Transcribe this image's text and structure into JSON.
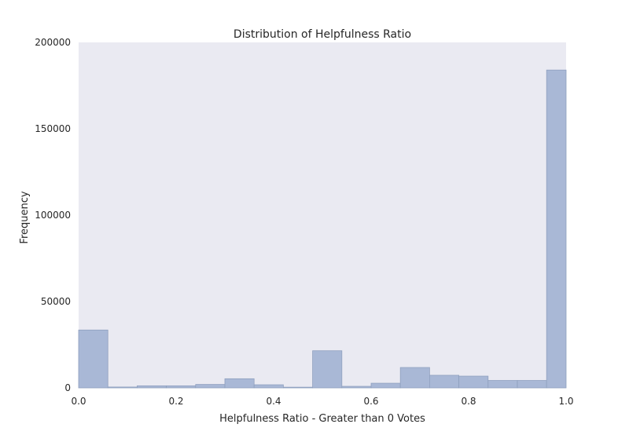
{
  "chart_data": {
    "type": "bar",
    "title": "Distribution of Helpfulness Ratio",
    "xlabel": "Helpfulness Ratio - Greater than 0 Votes",
    "ylabel": "Frequency",
    "xlim": [
      0.0,
      1.0
    ],
    "ylim": [
      0,
      200000
    ],
    "grid": false,
    "colors": {
      "bar": "#a9b8d6",
      "plot_background": "#eaeaf2"
    },
    "x_ticks": [
      "0.0",
      "0.2",
      "0.4",
      "0.6",
      "0.8",
      "1.0"
    ],
    "x_tick_values": [
      0.0,
      0.2,
      0.4,
      0.6,
      0.8,
      1.0
    ],
    "y_ticks": [
      "0",
      "50000",
      "100000",
      "150000",
      "200000"
    ],
    "y_tick_values": [
      0,
      50000,
      100000,
      150000,
      200000
    ],
    "bin_edges": [
      0.0,
      0.06,
      0.12,
      0.18,
      0.24,
      0.3,
      0.36,
      0.42,
      0.48,
      0.54,
      0.6,
      0.66,
      0.72,
      0.78,
      0.84,
      0.9,
      0.96,
      1.0
    ],
    "values": [
      33500,
      500,
      1200,
      1200,
      2000,
      5300,
      1800,
      400,
      21500,
      900,
      2700,
      11800,
      7300,
      6800,
      4300,
      4300,
      184000
    ]
  }
}
